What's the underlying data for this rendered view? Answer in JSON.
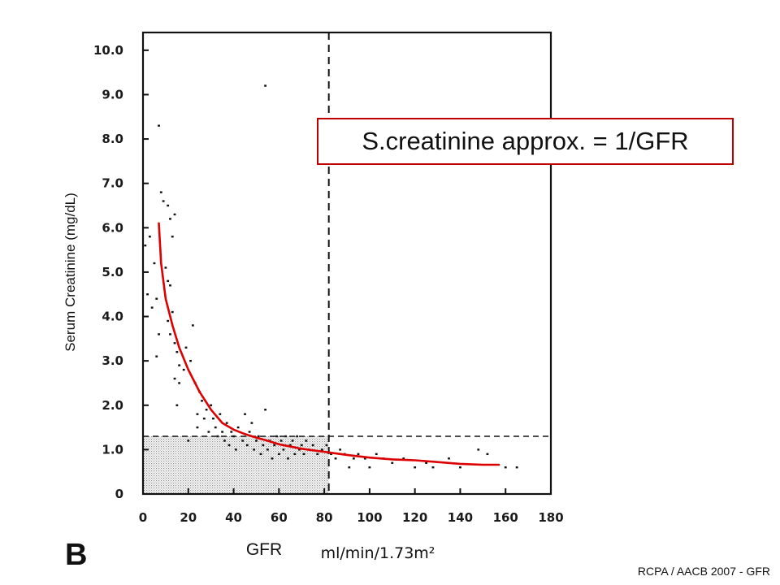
{
  "chart_data": {
    "type": "scatter",
    "panel_label": "B",
    "xlabel": "GFR",
    "xunits": "ml/min/1.73m²",
    "ylabel": "Serum Creatinine (mg/dL)",
    "xlim": [
      0,
      180
    ],
    "ylim": [
      0,
      10.4
    ],
    "x_ticks": [
      "0",
      "20",
      "40",
      "60",
      "80",
      "100",
      "120",
      "140",
      "160",
      "180"
    ],
    "y_ticks": [
      "0",
      "1.0",
      "2.0",
      "3.0",
      "4.0",
      "5.0",
      "6.0",
      "7.0",
      "8.0",
      "9.0",
      "10.0"
    ],
    "reference_lines": {
      "gfr": 82,
      "creatinine": 1.3
    },
    "annotation": "S.creatinine approx. = 1/GFR",
    "credit": "RCPA / AACB 2007 - GFR",
    "colors": {
      "fit": "#dd0000",
      "points": "#111111",
      "box": "#c00000"
    },
    "fit_curve": [
      [
        7,
        6.1
      ],
      [
        8,
        5.2
      ],
      [
        10,
        4.4
      ],
      [
        13,
        3.8
      ],
      [
        16,
        3.3
      ],
      [
        20,
        2.8
      ],
      [
        25,
        2.3
      ],
      [
        30,
        1.9
      ],
      [
        35,
        1.6
      ],
      [
        40,
        1.45
      ],
      [
        45,
        1.35
      ],
      [
        50,
        1.27
      ],
      [
        55,
        1.2
      ],
      [
        60,
        1.12
      ],
      [
        70,
        1.02
      ],
      [
        80,
        0.95
      ],
      [
        90,
        0.88
      ],
      [
        100,
        0.82
      ],
      [
        110,
        0.78
      ],
      [
        120,
        0.76
      ],
      [
        130,
        0.72
      ],
      [
        140,
        0.68
      ],
      [
        150,
        0.66
      ],
      [
        157,
        0.66
      ]
    ],
    "points": [
      [
        1,
        5.6
      ],
      [
        2,
        4.5
      ],
      [
        3,
        5.8
      ],
      [
        5,
        5.2
      ],
      [
        4,
        4.2
      ],
      [
        6,
        4.4
      ],
      [
        7,
        3.6
      ],
      [
        6,
        3.1
      ],
      [
        7,
        8.3
      ],
      [
        8,
        6.8
      ],
      [
        9,
        6.6
      ],
      [
        11,
        6.5
      ],
      [
        14,
        6.3
      ],
      [
        12,
        6.2
      ],
      [
        13,
        5.8
      ],
      [
        10,
        5.1
      ],
      [
        11,
        4.8
      ],
      [
        12,
        4.7
      ],
      [
        13,
        4.1
      ],
      [
        11,
        3.9
      ],
      [
        12,
        3.6
      ],
      [
        14,
        3.4
      ],
      [
        15,
        3.2
      ],
      [
        16,
        2.9
      ],
      [
        14,
        2.6
      ],
      [
        16,
        2.5
      ],
      [
        15,
        2.0
      ],
      [
        18,
        2.8
      ],
      [
        19,
        3.3
      ],
      [
        21,
        3.0
      ],
      [
        22,
        3.8
      ],
      [
        23,
        2.5
      ],
      [
        25,
        2.3
      ],
      [
        26,
        2.1
      ],
      [
        24,
        1.8
      ],
      [
        27,
        1.7
      ],
      [
        28,
        1.9
      ],
      [
        30,
        2.0
      ],
      [
        31,
        1.7
      ],
      [
        32,
        1.5
      ],
      [
        33,
        1.3
      ],
      [
        34,
        1.8
      ],
      [
        35,
        1.4
      ],
      [
        36,
        1.2
      ],
      [
        37,
        1.6
      ],
      [
        38,
        1.1
      ],
      [
        39,
        1.4
      ],
      [
        40,
        1.3
      ],
      [
        41,
        1.0
      ],
      [
        42,
        1.5
      ],
      [
        44,
        1.2
      ],
      [
        45,
        1.8
      ],
      [
        46,
        1.1
      ],
      [
        47,
        1.4
      ],
      [
        48,
        1.6
      ],
      [
        49,
        1.0
      ],
      [
        50,
        1.2
      ],
      [
        51,
        1.3
      ],
      [
        52,
        0.9
      ],
      [
        53,
        1.1
      ],
      [
        54,
        1.9
      ],
      [
        55,
        1.0
      ],
      [
        56,
        1.2
      ],
      [
        57,
        0.8
      ],
      [
        58,
        1.1
      ],
      [
        59,
        1.3
      ],
      [
        60,
        0.9
      ],
      [
        61,
        1.2
      ],
      [
        62,
        1.0
      ],
      [
        63,
        1.3
      ],
      [
        64,
        0.8
      ],
      [
        65,
        1.1
      ],
      [
        66,
        1.2
      ],
      [
        67,
        0.9
      ],
      [
        68,
        1.3
      ],
      [
        69,
        1.0
      ],
      [
        70,
        1.1
      ],
      [
        71,
        0.9
      ],
      [
        72,
        1.2
      ],
      [
        73,
        1.0
      ],
      [
        75,
        1.1
      ],
      [
        77,
        0.9
      ],
      [
        79,
        1.0
      ],
      [
        81,
        1.1
      ],
      [
        83,
        0.9
      ],
      [
        85,
        0.8
      ],
      [
        87,
        1.0
      ],
      [
        89,
        0.9
      ],
      [
        91,
        0.6
      ],
      [
        93,
        0.8
      ],
      [
        95,
        0.9
      ],
      [
        98,
        0.8
      ],
      [
        100,
        0.6
      ],
      [
        103,
        0.9
      ],
      [
        106,
        0.8
      ],
      [
        110,
        0.7
      ],
      [
        115,
        0.8
      ],
      [
        120,
        0.6
      ],
      [
        125,
        0.7
      ],
      [
        128,
        0.6
      ],
      [
        135,
        0.8
      ],
      [
        140,
        0.6
      ],
      [
        148,
        1.0
      ],
      [
        152,
        0.9
      ],
      [
        160,
        0.6
      ],
      [
        165,
        0.6
      ],
      [
        54,
        9.2
      ],
      [
        20,
        1.2
      ],
      [
        24,
        1.5
      ],
      [
        29,
        1.4
      ]
    ]
  }
}
